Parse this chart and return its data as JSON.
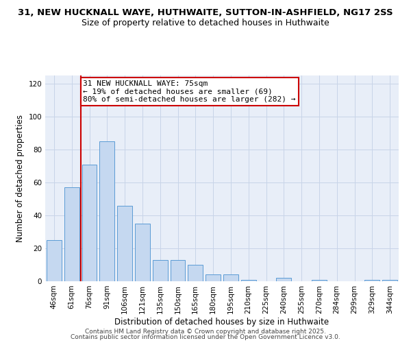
{
  "title_line1": "31, NEW HUCKNALL WAYE, HUTHWAITE, SUTTON-IN-ASHFIELD, NG17 2SS",
  "title_line2": "Size of property relative to detached houses in Huthwaite",
  "xlabel": "Distribution of detached houses by size in Huthwaite",
  "ylabel": "Number of detached properties",
  "categories": [
    "46sqm",
    "61sqm",
    "76sqm",
    "91sqm",
    "106sqm",
    "121sqm",
    "135sqm",
    "150sqm",
    "165sqm",
    "180sqm",
    "195sqm",
    "210sqm",
    "225sqm",
    "240sqm",
    "255sqm",
    "270sqm",
    "284sqm",
    "299sqm",
    "329sqm",
    "344sqm"
  ],
  "values": [
    25,
    57,
    71,
    85,
    46,
    35,
    13,
    13,
    10,
    4,
    4,
    1,
    0,
    2,
    0,
    1,
    0,
    0,
    1,
    1
  ],
  "bar_color": "#c5d8f0",
  "bar_edge_color": "#5b9bd5",
  "vline_x_index": 2,
  "marker_label": "31 NEW HUCKNALL WAYE: 75sqm",
  "annotation_line2": "← 19% of detached houses are smaller (69)",
  "annotation_line3": "80% of semi-detached houses are larger (282) →",
  "annotation_box_color": "#cc0000",
  "vline_color": "#cc0000",
  "ylim": [
    0,
    125
  ],
  "yticks": [
    0,
    20,
    40,
    60,
    80,
    100,
    120
  ],
  "grid_color": "#c8d4e8",
  "background_color": "#e8eef8",
  "footer_line1": "Contains HM Land Registry data © Crown copyright and database right 2025.",
  "footer_line2": "Contains public sector information licensed under the Open Government Licence v3.0.",
  "title_fontsize": 9.5,
  "subtitle_fontsize": 9,
  "axis_label_fontsize": 8.5,
  "tick_fontsize": 7.5,
  "annotation_fontsize": 8,
  "footer_fontsize": 6.5
}
